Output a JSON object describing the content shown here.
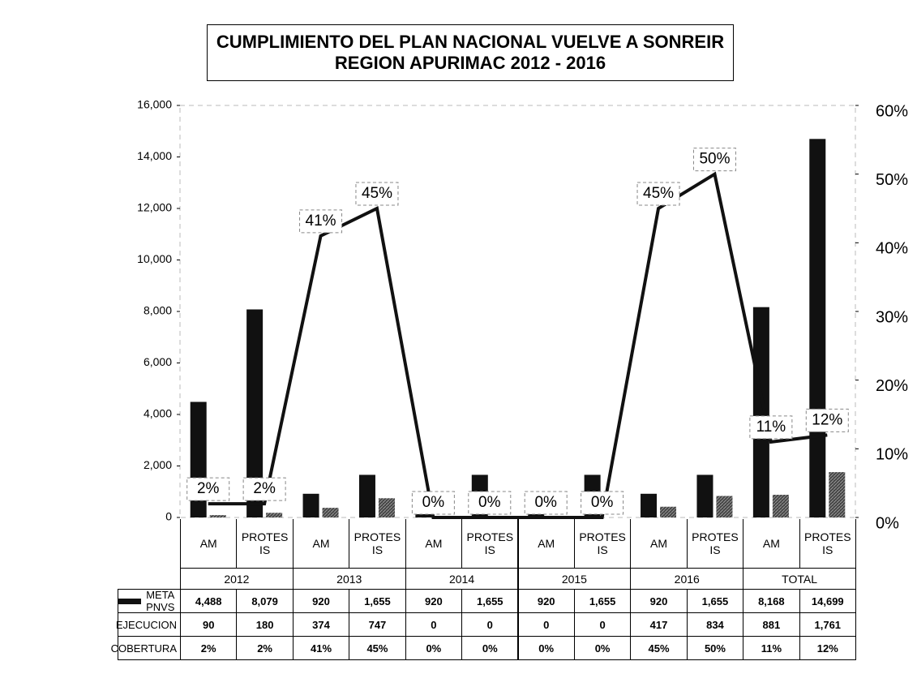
{
  "chart_data": {
    "type": "bar",
    "title": "CUMPLIMIENTO DEL PLAN NACIONAL VUELVE A SONREIR",
    "subtitle": "REGION APURIMAC 2012 - 2016",
    "categories": [
      "AM",
      "PROTES IS",
      "AM",
      "PROTES IS",
      "AM",
      "PROTES IS",
      "AM",
      "PROTES IS",
      "AM",
      "PROTES IS",
      "AM",
      "PROTES IS"
    ],
    "groups": [
      "2012",
      "2013",
      "2014",
      "2015",
      "2016",
      "TOTAL"
    ],
    "series": [
      {
        "name": "META PNVS",
        "color": "#111111",
        "values": [
          4488,
          8079,
          920,
          1655,
          920,
          1655,
          920,
          1655,
          920,
          1655,
          8168,
          14699
        ],
        "value_labels": [
          "4,488",
          "8,079",
          "920",
          "1,655",
          "920",
          "1,655",
          "920",
          "1,655",
          "920",
          "1,655",
          "8,168",
          "14,699"
        ]
      },
      {
        "name": "EJECUCION",
        "color": "#3a3a3a",
        "values": [
          90,
          180,
          374,
          747,
          0,
          0,
          0,
          0,
          417,
          834,
          881,
          1761
        ],
        "value_labels": [
          "90",
          "180",
          "374",
          "747",
          "0",
          "0",
          "0",
          "0",
          "417",
          "834",
          "881",
          "1,761"
        ]
      },
      {
        "name": "COBERTURA",
        "type": "line",
        "axis": "y2",
        "color": "#111111",
        "values": [
          2,
          2,
          41,
          45,
          0,
          0,
          0,
          0,
          45,
          50,
          11,
          12
        ],
        "value_labels": [
          "2%",
          "2%",
          "41%",
          "45%",
          "0%",
          "0%",
          "0%",
          "0%",
          "45%",
          "50%",
          "11%",
          "12%"
        ]
      }
    ],
    "ylim": [
      0,
      16000
    ],
    "yticks": [
      {
        "value": 0,
        "label": "0"
      },
      {
        "value": 2000,
        "label": "2,000"
      },
      {
        "value": 4000,
        "label": "4,000"
      },
      {
        "value": 6000,
        "label": "6,000"
      },
      {
        "value": 8000,
        "label": "8,000"
      },
      {
        "value": 10000,
        "label": "10,000"
      },
      {
        "value": 12000,
        "label": "12,000"
      },
      {
        "value": 14000,
        "label": "14,000"
      },
      {
        "value": 16000,
        "label": "16,000"
      }
    ],
    "y2lim": [
      0,
      60
    ],
    "y2ticks": [
      {
        "value": 0,
        "label": "0%"
      },
      {
        "value": 10,
        "label": "10%"
      },
      {
        "value": 20,
        "label": "20%"
      },
      {
        "value": 30,
        "label": "30%"
      },
      {
        "value": 40,
        "label": "40%"
      },
      {
        "value": 50,
        "label": "50%"
      },
      {
        "value": 60,
        "label": "60%"
      }
    ]
  }
}
